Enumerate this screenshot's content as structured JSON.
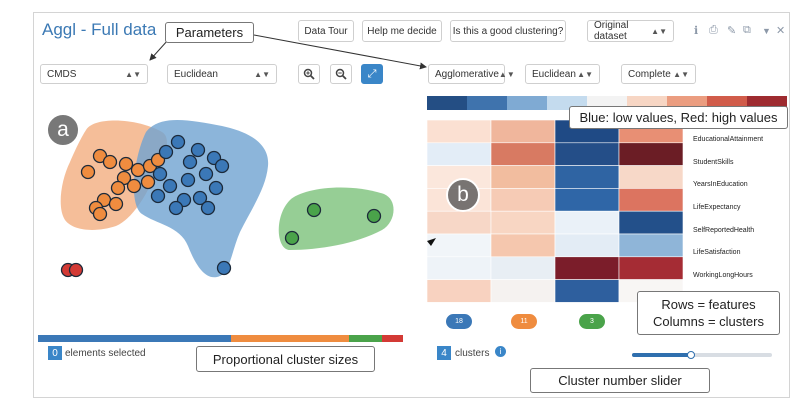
{
  "header": {
    "title": "Aggl - Full data",
    "buttons": [
      "Data Tour",
      "Help me decide",
      "Is this a good clustering?"
    ],
    "dataset_select": "Original dataset"
  },
  "toolbar": {
    "projection": "CMDS",
    "proj_metric": "Euclidean",
    "algorithm": "Agglomerative",
    "clust_metric": "Euclidean",
    "linkage": "Complete"
  },
  "callouts": {
    "parameters": "Parameters",
    "color_legend": "Blue: low values, Red: high values",
    "rows_cols": "Rows = features\nColumns = clusters",
    "proportional": "Proportional cluster sizes",
    "slider": "Cluster number slider"
  },
  "labels": {
    "a": "a",
    "b": "b"
  },
  "selection": {
    "count": "0",
    "text": "elements selected"
  },
  "clusters": {
    "count": "4",
    "text": "clusters"
  },
  "features": [
    "EducationalAttainment",
    "StudentSkills",
    "YearsInEducation",
    "LifeExpectancy",
    "SelfReportedHealth",
    "LifeSatisfaction",
    "WorkingLongHours"
  ],
  "cluster_badges": [
    {
      "label": "18",
      "color": "#3b78b7"
    },
    {
      "label": "11",
      "color": "#ef8c3f"
    },
    {
      "label": "3",
      "color": "#4aa34a"
    }
  ],
  "cluster_sizes": [
    18,
    11,
    3,
    2
  ],
  "colors": {
    "blue": "#3b78b7",
    "orange": "#ef8c3f",
    "green": "#4aa34a",
    "red": "#d33a35"
  }
}
